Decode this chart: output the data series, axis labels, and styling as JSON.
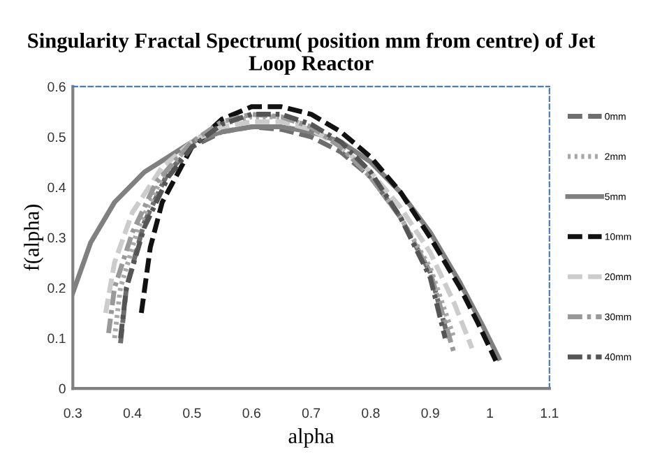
{
  "chart_data": {
    "type": "line",
    "title": "Singularity Fractal Spectrum( position mm from centre) of Jet Loop Reactor",
    "xlabel": "alpha",
    "ylabel": "f(alpha)",
    "xlim": [
      0.3,
      1.1
    ],
    "xticks": [
      0.3,
      0.4,
      0.5,
      0.6,
      0.7,
      0.8,
      0.9,
      1,
      1.1
    ],
    "ylim": [
      0,
      0.6
    ],
    "yticks": [
      0,
      0.1,
      0.2,
      0.3,
      0.4,
      0.5,
      0.6
    ],
    "grid": false,
    "legend": "right",
    "marker": "none",
    "series": [
      {
        "name": "0mm",
        "color": "#6e6e6e",
        "line_style": "dashed",
        "x": [
          0.38,
          0.39,
          0.42,
          0.46,
          0.5,
          0.55,
          0.6,
          0.65,
          0.7,
          0.75,
          0.8,
          0.85,
          0.9,
          0.93
        ],
        "values": [
          0.09,
          0.2,
          0.33,
          0.43,
          0.48,
          0.51,
          0.52,
          0.515,
          0.5,
          0.47,
          0.42,
          0.34,
          0.23,
          0.1
        ]
      },
      {
        "name": "2mm",
        "color": "#a8a8a8",
        "line_style": "dotted",
        "x": [
          0.37,
          0.38,
          0.41,
          0.45,
          0.5,
          0.55,
          0.6,
          0.65,
          0.7,
          0.75,
          0.8,
          0.85,
          0.9,
          0.94
        ],
        "values": [
          0.1,
          0.2,
          0.32,
          0.42,
          0.49,
          0.525,
          0.54,
          0.54,
          0.52,
          0.48,
          0.42,
          0.34,
          0.24,
          0.1
        ]
      },
      {
        "name": "5mm",
        "color": "#808080",
        "line_style": "solid",
        "x": [
          0.3,
          0.33,
          0.37,
          0.42,
          0.5,
          0.55,
          0.6,
          0.65,
          0.7,
          0.75,
          0.8,
          0.85,
          0.9,
          0.95,
          0.99,
          1.015
        ],
        "values": [
          0.19,
          0.29,
          0.37,
          0.43,
          0.49,
          0.51,
          0.52,
          0.52,
          0.51,
          0.49,
          0.45,
          0.39,
          0.31,
          0.21,
          0.12,
          0.06
        ]
      },
      {
        "name": "10mm",
        "color": "#111111",
        "line_style": "dashed",
        "x": [
          0.415,
          0.43,
          0.45,
          0.5,
          0.55,
          0.6,
          0.65,
          0.7,
          0.75,
          0.8,
          0.85,
          0.9,
          0.95,
          0.98,
          1.01
        ],
        "values": [
          0.15,
          0.28,
          0.37,
          0.48,
          0.535,
          0.56,
          0.56,
          0.545,
          0.51,
          0.46,
          0.39,
          0.3,
          0.2,
          0.13,
          0.055
        ]
      },
      {
        "name": "20mm",
        "color": "#cccccc",
        "line_style": "dashed",
        "x": [
          0.355,
          0.37,
          0.4,
          0.45,
          0.5,
          0.55,
          0.6,
          0.65,
          0.7,
          0.75,
          0.8,
          0.85,
          0.9,
          0.94,
          0.97
        ],
        "values": [
          0.15,
          0.25,
          0.35,
          0.44,
          0.49,
          0.52,
          0.53,
          0.53,
          0.515,
          0.48,
          0.43,
          0.36,
          0.27,
          0.17,
          0.08
        ]
      },
      {
        "name": "30mm",
        "color": "#999999",
        "line_style": "dashdot",
        "x": [
          0.36,
          0.37,
          0.4,
          0.44,
          0.5,
          0.55,
          0.6,
          0.65,
          0.7,
          0.75,
          0.8,
          0.85,
          0.9,
          0.94
        ],
        "values": [
          0.11,
          0.2,
          0.31,
          0.41,
          0.49,
          0.53,
          0.545,
          0.54,
          0.52,
          0.48,
          0.42,
          0.34,
          0.23,
          0.07
        ]
      },
      {
        "name": "40mm",
        "color": "#555555",
        "line_style": "dashdot",
        "x": [
          0.38,
          0.39,
          0.42,
          0.46,
          0.5,
          0.55,
          0.6,
          0.65,
          0.7,
          0.75,
          0.8,
          0.85,
          0.9,
          0.925
        ],
        "values": [
          0.1,
          0.2,
          0.32,
          0.42,
          0.48,
          0.525,
          0.545,
          0.545,
          0.525,
          0.49,
          0.43,
          0.34,
          0.22,
          0.1
        ]
      }
    ]
  }
}
